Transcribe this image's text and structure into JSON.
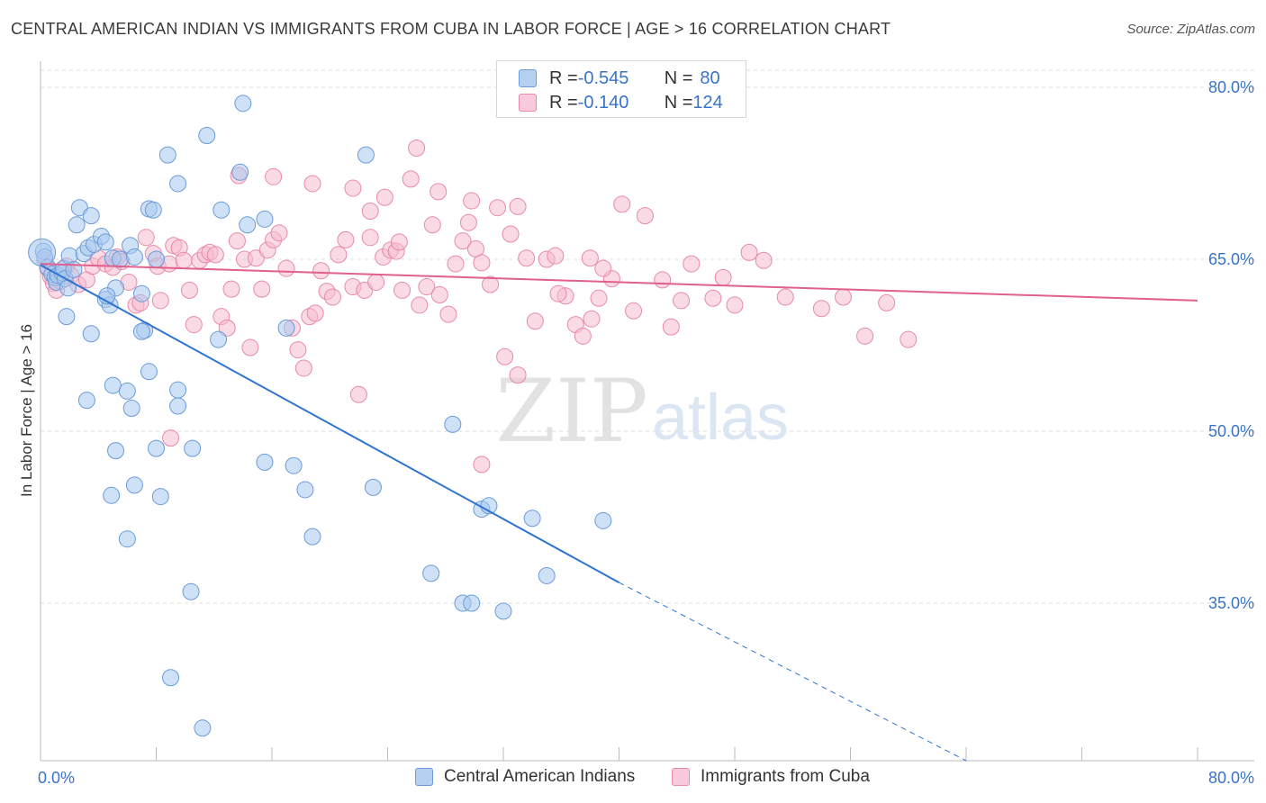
{
  "header": {
    "title": "CENTRAL AMERICAN INDIAN VS IMMIGRANTS FROM CUBA IN LABOR FORCE | AGE > 16 CORRELATION CHART",
    "source": "Source: ZipAtlas.com"
  },
  "watermark": {
    "zip": "ZIP",
    "atlas": "atlas"
  },
  "legend_top": {
    "rows": [
      {
        "r_label": "R = ",
        "r_value": "-0.545",
        "n_label": "N = ",
        "n_value": "80"
      },
      {
        "r_label": "R = ",
        "r_value": "-0.140",
        "n_label": "N = ",
        "n_value": "124"
      }
    ]
  },
  "colors": {
    "blue_fill": "#a8c8ef",
    "blue_stroke": "#6b9bd8",
    "blue_line": "#2f74d0",
    "pink_fill": "#f6bcd0",
    "pink_stroke": "#e88aaa",
    "pink_line": "#e0608e",
    "tick_text": "#3a73c8",
    "grid": "#dddddd"
  },
  "chart_data": {
    "type": "scatter",
    "title": "CENTRAL AMERICAN INDIAN VS IMMIGRANTS FROM CUBA IN LABOR FORCE | AGE > 16 CORRELATION CHART",
    "xlabel": "",
    "ylabel": "In Labor Force | Age > 16",
    "xlim": [
      0,
      80
    ],
    "ylim": [
      20,
      82
    ],
    "x_tick_labels": [
      "0.0%",
      "80.0%"
    ],
    "y_ticks": [
      35,
      50,
      65,
      80
    ],
    "y_tick_labels": [
      "35.0%",
      "50.0%",
      "65.0%",
      "80.0%"
    ],
    "grid": "horizontal dashed",
    "legend_placement": "bottom",
    "series": [
      {
        "name": "Central American Indians",
        "color": "#a8c8ef",
        "r": -0.545,
        "n": 80,
        "trend": {
          "x": [
            0,
            40
          ],
          "y": [
            64.5,
            36.8
          ],
          "dashed_extension_to": [
            64,
            20
          ]
        },
        "points": [
          [
            0.2,
            65.7
          ],
          [
            0.3,
            65.2
          ],
          [
            0.5,
            64.3
          ],
          [
            0.8,
            63.7
          ],
          [
            1.0,
            63.4
          ],
          [
            1.1,
            63.0
          ],
          [
            1.2,
            63.6
          ],
          [
            1.5,
            63.8
          ],
          [
            1.6,
            64.2
          ],
          [
            1.7,
            63.3
          ],
          [
            2.0,
            65.3
          ],
          [
            2.3,
            64.1
          ],
          [
            2.5,
            68.0
          ],
          [
            2.7,
            69.5
          ],
          [
            3.0,
            65.5
          ],
          [
            3.3,
            66.0
          ],
          [
            3.5,
            68.8
          ],
          [
            3.7,
            66.3
          ],
          [
            4.2,
            67.0
          ],
          [
            4.5,
            61.5
          ],
          [
            4.8,
            61.0
          ],
          [
            5.0,
            65.1
          ],
          [
            5.2,
            62.5
          ],
          [
            5.5,
            65.0
          ],
          [
            6.2,
            66.2
          ],
          [
            6.5,
            65.2
          ],
          [
            7.0,
            62.0
          ],
          [
            7.5,
            69.4
          ],
          [
            8.0,
            65.0
          ],
          [
            1.8,
            60.0
          ],
          [
            3.5,
            58.5
          ],
          [
            4.6,
            61.8
          ],
          [
            7.2,
            58.8
          ],
          [
            7.0,
            58.7
          ],
          [
            12.3,
            58.0
          ],
          [
            17.0,
            59.0
          ],
          [
            7.5,
            55.2
          ],
          [
            5.0,
            54.0
          ],
          [
            6.0,
            53.5
          ],
          [
            3.2,
            52.7
          ],
          [
            6.3,
            52.0
          ],
          [
            9.5,
            53.6
          ],
          [
            9.5,
            52.2
          ],
          [
            5.2,
            48.3
          ],
          [
            8.0,
            48.5
          ],
          [
            10.5,
            48.5
          ],
          [
            15.5,
            47.3
          ],
          [
            17.5,
            47.0
          ],
          [
            6.5,
            45.3
          ],
          [
            18.3,
            44.9
          ],
          [
            4.9,
            44.4
          ],
          [
            8.3,
            44.3
          ],
          [
            23.0,
            45.1
          ],
          [
            28.5,
            50.6
          ],
          [
            30.5,
            43.2
          ],
          [
            31.0,
            43.5
          ],
          [
            34.0,
            42.4
          ],
          [
            38.9,
            42.2
          ],
          [
            18.8,
            40.8
          ],
          [
            6.0,
            40.6
          ],
          [
            27.0,
            37.6
          ],
          [
            35.0,
            37.4
          ],
          [
            29.2,
            35.0
          ],
          [
            29.8,
            35.0
          ],
          [
            32.0,
            34.3
          ],
          [
            10.4,
            36.0
          ],
          [
            9.0,
            28.5
          ],
          [
            11.2,
            24.1
          ],
          [
            14.0,
            78.6
          ],
          [
            11.5,
            75.8
          ],
          [
            8.8,
            74.1
          ],
          [
            22.5,
            74.1
          ],
          [
            9.5,
            71.6
          ],
          [
            13.8,
            72.6
          ],
          [
            7.8,
            69.3
          ],
          [
            12.5,
            69.3
          ],
          [
            14.3,
            68.0
          ],
          [
            15.5,
            68.5
          ],
          [
            4.5,
            66.5
          ],
          [
            1.9,
            62.5
          ]
        ]
      },
      {
        "name": "Immigrants from Cuba",
        "color": "#f6bcd0",
        "r": -0.14,
        "n": 124,
        "trend": {
          "x": [
            0,
            80
          ],
          "y": [
            64.6,
            61.4
          ]
        },
        "points": [
          [
            0.3,
            64.9
          ],
          [
            0.5,
            64.2
          ],
          [
            0.7,
            63.5
          ],
          [
            0.9,
            62.9
          ],
          [
            1.1,
            62.3
          ],
          [
            1.4,
            63.1
          ],
          [
            1.8,
            64.4
          ],
          [
            2.1,
            63.6
          ],
          [
            2.6,
            62.8
          ],
          [
            3.2,
            63.2
          ],
          [
            3.6,
            64.4
          ],
          [
            4.0,
            65.1
          ],
          [
            4.5,
            64.6
          ],
          [
            5.0,
            64.3
          ],
          [
            5.3,
            65.2
          ],
          [
            5.6,
            64.8
          ],
          [
            6.1,
            63.0
          ],
          [
            6.6,
            61.0
          ],
          [
            6.9,
            61.2
          ],
          [
            7.3,
            66.9
          ],
          [
            7.8,
            65.5
          ],
          [
            8.1,
            64.4
          ],
          [
            8.3,
            61.4
          ],
          [
            8.9,
            64.6
          ],
          [
            9.2,
            66.2
          ],
          [
            9.6,
            66.0
          ],
          [
            9.9,
            64.9
          ],
          [
            10.3,
            62.3
          ],
          [
            10.6,
            59.3
          ],
          [
            11.0,
            64.9
          ],
          [
            11.4,
            65.4
          ],
          [
            11.7,
            65.6
          ],
          [
            12.1,
            65.4
          ],
          [
            12.5,
            60.0
          ],
          [
            12.9,
            59.0
          ],
          [
            13.2,
            62.4
          ],
          [
            13.6,
            66.6
          ],
          [
            14.1,
            65.0
          ],
          [
            14.5,
            57.3
          ],
          [
            14.9,
            65.1
          ],
          [
            15.3,
            62.4
          ],
          [
            15.7,
            65.8
          ],
          [
            16.1,
            66.7
          ],
          [
            16.5,
            67.3
          ],
          [
            17.0,
            64.2
          ],
          [
            17.4,
            59.0
          ],
          [
            17.8,
            57.1
          ],
          [
            18.2,
            55.5
          ],
          [
            18.6,
            60.0
          ],
          [
            19.0,
            60.3
          ],
          [
            19.4,
            64.0
          ],
          [
            19.8,
            62.2
          ],
          [
            20.2,
            61.7
          ],
          [
            20.6,
            65.4
          ],
          [
            21.1,
            66.7
          ],
          [
            21.6,
            62.6
          ],
          [
            22.0,
            53.2
          ],
          [
            22.4,
            62.3
          ],
          [
            22.8,
            66.9
          ],
          [
            23.2,
            63.0
          ],
          [
            23.7,
            65.2
          ],
          [
            24.2,
            65.8
          ],
          [
            24.6,
            65.7
          ],
          [
            25.0,
            62.3
          ],
          [
            25.6,
            72.0
          ],
          [
            26.2,
            61.0
          ],
          [
            26.7,
            62.6
          ],
          [
            27.1,
            68.0
          ],
          [
            27.6,
            61.9
          ],
          [
            28.2,
            60.2
          ],
          [
            28.7,
            64.6
          ],
          [
            29.2,
            66.6
          ],
          [
            29.6,
            68.2
          ],
          [
            30.1,
            65.9
          ],
          [
            30.5,
            47.1
          ],
          [
            31.1,
            62.8
          ],
          [
            31.6,
            69.5
          ],
          [
            32.1,
            56.5
          ],
          [
            32.5,
            67.2
          ],
          [
            33.0,
            54.9
          ],
          [
            33.6,
            65.1
          ],
          [
            34.2,
            59.6
          ],
          [
            35.0,
            65.0
          ],
          [
            35.6,
            65.3
          ],
          [
            36.3,
            61.8
          ],
          [
            37.0,
            59.3
          ],
          [
            37.5,
            58.3
          ],
          [
            38.1,
            59.8
          ],
          [
            38.6,
            61.6
          ],
          [
            39.5,
            63.3
          ],
          [
            40.2,
            69.8
          ],
          [
            41.0,
            60.5
          ],
          [
            41.8,
            68.8
          ],
          [
            43.0,
            63.2
          ],
          [
            43.6,
            59.1
          ],
          [
            44.3,
            61.4
          ],
          [
            45.0,
            64.6
          ],
          [
            46.5,
            61.6
          ],
          [
            47.2,
            63.4
          ],
          [
            48.0,
            61.0
          ],
          [
            49.0,
            65.6
          ],
          [
            50.0,
            64.9
          ],
          [
            51.5,
            61.7
          ],
          [
            54.0,
            60.7
          ],
          [
            55.5,
            61.7
          ],
          [
            57.0,
            58.3
          ],
          [
            58.5,
            61.2
          ],
          [
            60.0,
            58.0
          ],
          [
            26.0,
            74.7
          ],
          [
            18.8,
            71.6
          ],
          [
            21.6,
            71.2
          ],
          [
            16.1,
            72.2
          ],
          [
            13.7,
            72.3
          ],
          [
            23.8,
            70.4
          ],
          [
            27.5,
            70.9
          ],
          [
            29.8,
            70.1
          ],
          [
            33.0,
            69.6
          ],
          [
            38.0,
            65.1
          ],
          [
            38.9,
            64.2
          ],
          [
            22.8,
            69.2
          ],
          [
            24.8,
            66.5
          ],
          [
            30.5,
            64.7
          ],
          [
            35.8,
            62.0
          ],
          [
            9.0,
            49.4
          ]
        ]
      }
    ]
  },
  "x_axis": {
    "left_label": "0.0%",
    "right_label": "80.0%"
  },
  "y_axis": {
    "label": "In Labor Force | Age > 16"
  },
  "bottom_legend": {
    "item1": "Central American Indians",
    "item2": "Immigrants from Cuba"
  }
}
